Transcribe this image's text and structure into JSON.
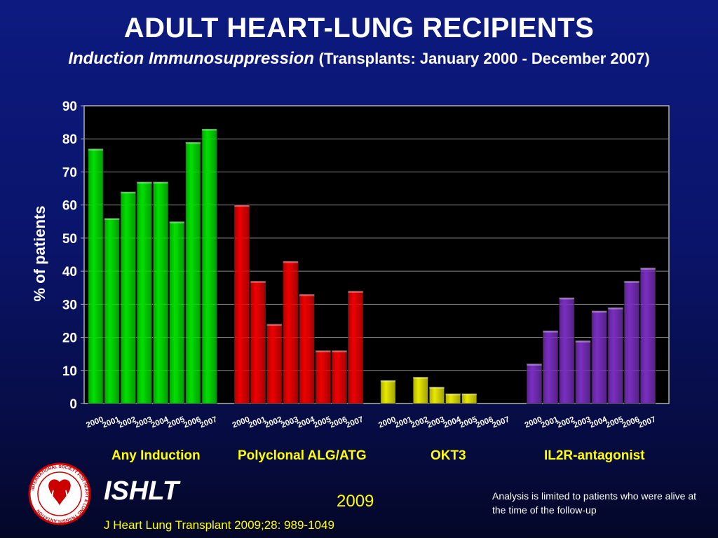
{
  "title": "ADULT HEART-LUNG RECIPIENTS",
  "subtitle": {
    "main": "Induction Immunosuppression",
    "paren": "(Transplants: January 2000  - December 2007)"
  },
  "colors": {
    "Any Induction": "#00e000",
    "Polyclonal ALG/ATG": "#ee0000",
    "OKT3": "#e8e800",
    "IL2R-antagonist": "#7a2fc0"
  },
  "chart_data": {
    "type": "bar",
    "title": "",
    "xlabel": "",
    "ylabel": "% of patients",
    "ylim": [
      0,
      90
    ],
    "yticks": [
      0,
      10,
      20,
      30,
      40,
      50,
      60,
      70,
      80,
      90
    ],
    "grid": true,
    "categories": [
      "2000",
      "2001",
      "2002",
      "2003",
      "2004",
      "2005",
      "2006",
      "2007"
    ],
    "series": [
      {
        "name": "Any Induction",
        "values": [
          77,
          56,
          64,
          67,
          67,
          55,
          79,
          83
        ]
      },
      {
        "name": "Polyclonal ALG/ATG",
        "values": [
          60,
          37,
          24,
          43,
          33,
          16,
          16,
          34
        ]
      },
      {
        "name": "OKT3",
        "values": [
          7,
          0,
          8,
          5,
          3,
          3,
          0,
          0
        ]
      },
      {
        "name": "IL2R-antagonist",
        "values": [
          12,
          22,
          32,
          19,
          28,
          29,
          37,
          41
        ]
      }
    ]
  },
  "logo_text": "INTERNATIONAL SOCIETY FOR HEART & LUNG TRANSPLANTATION",
  "footer": {
    "org": "ISHLT",
    "year": "2009",
    "note": "Analysis is limited to patients who were alive at the time of the follow-up",
    "citation": "J Heart Lung Transplant 2009;28: 989-1049"
  }
}
